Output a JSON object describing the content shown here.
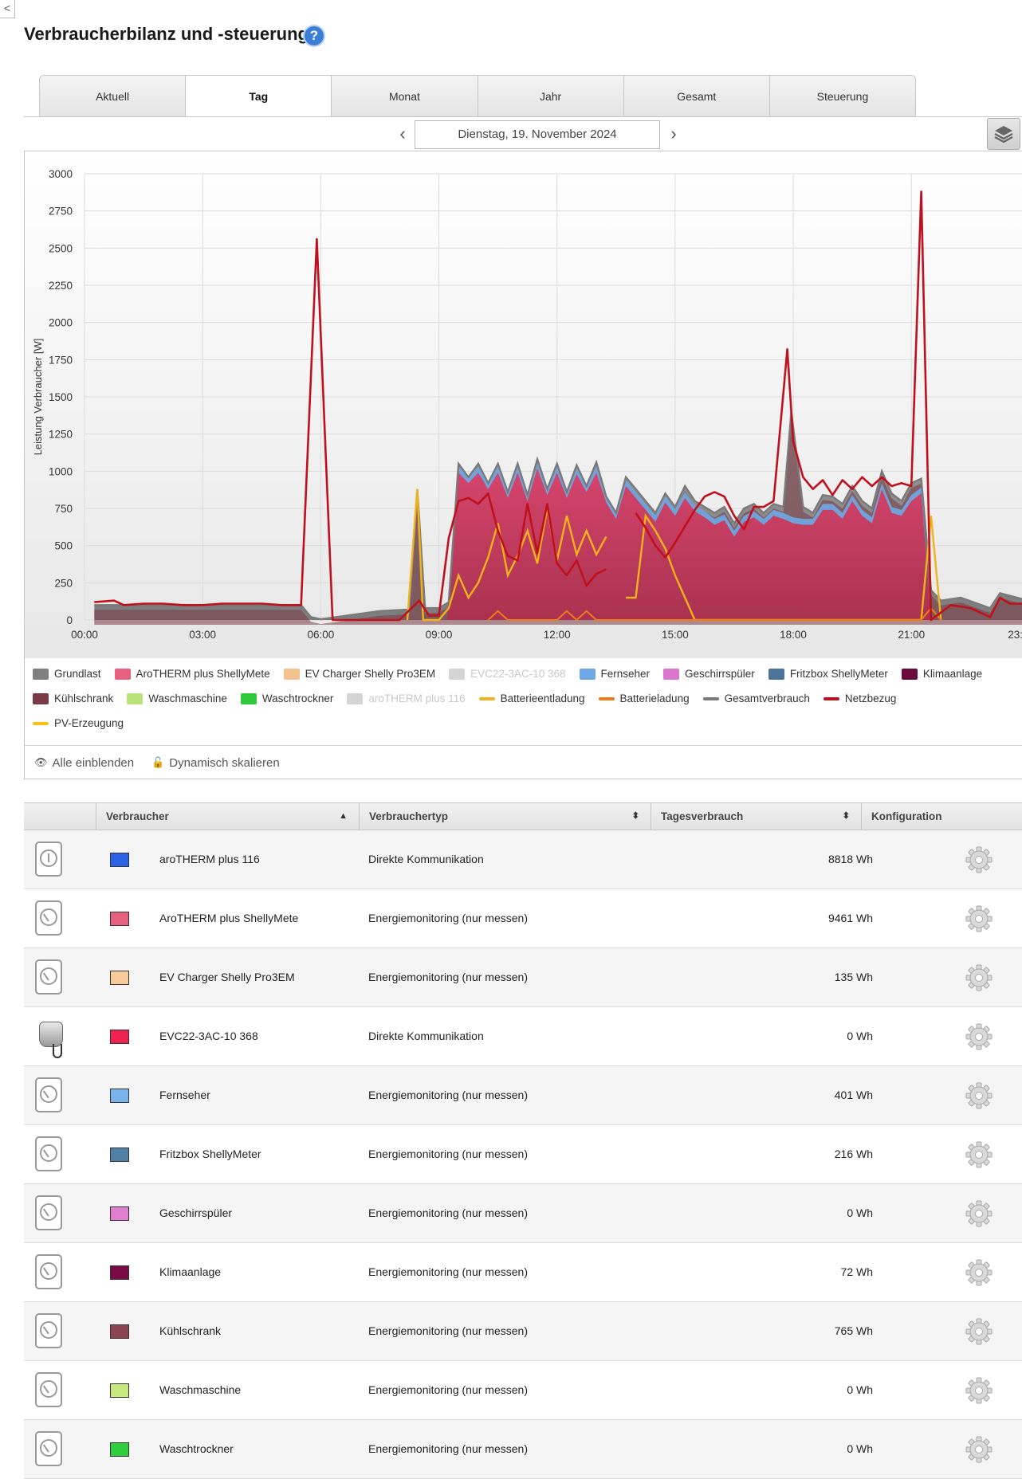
{
  "page": {
    "back_label": "<",
    "title": "Verbraucherbilanz und -steuerung",
    "help_label": "?"
  },
  "tabs": [
    {
      "label": "Aktuell",
      "active": false
    },
    {
      "label": "Tag",
      "active": true
    },
    {
      "label": "Monat",
      "active": false
    },
    {
      "label": "Jahr",
      "active": false
    },
    {
      "label": "Gesamt",
      "active": false
    },
    {
      "label": "Steuerung",
      "active": false
    }
  ],
  "date_nav": {
    "prev": "‹",
    "date": "Dienstag, 19. November 2024",
    "next": "›"
  },
  "chart_data": {
    "type": "area",
    "ylabel": "Leistung Verbraucher [W]",
    "ylim": [
      0,
      3000
    ],
    "yticks": [
      0,
      250,
      500,
      750,
      1000,
      1250,
      1500,
      1750,
      2000,
      2250,
      2500,
      2750,
      3000
    ],
    "xlim": [
      0,
      23.83
    ],
    "xticks": [
      "00:00",
      "03:00",
      "06:00",
      "09:00",
      "12:00",
      "15:00",
      "18:00",
      "21:00",
      "23:"
    ],
    "grid": true,
    "legend_position": "bottom",
    "series": [
      {
        "name": "Gesamtverbrauch",
        "color": "#7a7a7a",
        "kind": "line",
        "points": [
          [
            0.25,
            100
          ],
          [
            5.5,
            100
          ],
          [
            5.75,
            20
          ],
          [
            6,
            5
          ],
          [
            7.5,
            60
          ],
          [
            8.25,
            70
          ],
          [
            8.45,
            880
          ],
          [
            8.65,
            80
          ],
          [
            9,
            80
          ],
          [
            9.25,
            120
          ],
          [
            9.5,
            1050
          ],
          [
            9.75,
            960
          ],
          [
            10,
            1050
          ],
          [
            10.25,
            920
          ],
          [
            10.5,
            1050
          ],
          [
            10.75,
            860
          ],
          [
            11,
            1050
          ],
          [
            11.25,
            840
          ],
          [
            11.5,
            1080
          ],
          [
            11.75,
            880
          ],
          [
            12,
            1050
          ],
          [
            12.25,
            860
          ],
          [
            12.5,
            1040
          ],
          [
            12.75,
            900
          ],
          [
            13,
            1060
          ],
          [
            13.25,
            830
          ],
          [
            13.5,
            720
          ],
          [
            13.75,
            960
          ],
          [
            14,
            880
          ],
          [
            14.25,
            800
          ],
          [
            14.5,
            720
          ],
          [
            14.75,
            850
          ],
          [
            15,
            760
          ],
          [
            15.25,
            900
          ],
          [
            15.5,
            800
          ],
          [
            15.75,
            760
          ],
          [
            16,
            720
          ],
          [
            16.25,
            760
          ],
          [
            16.5,
            650
          ],
          [
            16.75,
            750
          ],
          [
            17,
            780
          ],
          [
            17.25,
            720
          ],
          [
            17.5,
            780
          ],
          [
            17.75,
            760
          ],
          [
            17.95,
            1400
          ],
          [
            18.25,
            760
          ],
          [
            18.5,
            720
          ],
          [
            18.75,
            840
          ],
          [
            19,
            830
          ],
          [
            19.25,
            780
          ],
          [
            19.5,
            900
          ],
          [
            19.75,
            800
          ],
          [
            20,
            750
          ],
          [
            20.25,
            1000
          ],
          [
            20.5,
            850
          ],
          [
            20.75,
            800
          ],
          [
            21,
            920
          ],
          [
            21.25,
            950
          ],
          [
            21.5,
            200
          ],
          [
            21.75,
            130
          ],
          [
            22.25,
            150
          ],
          [
            23,
            80
          ],
          [
            23.25,
            180
          ],
          [
            23.83,
            140
          ]
        ]
      },
      {
        "name": "AroTHERM plus ShellyMete",
        "color": "#d6456d",
        "kind": "area",
        "points": [
          [
            9.2,
            0
          ],
          [
            9.5,
            990
          ],
          [
            9.75,
            920
          ],
          [
            10,
            990
          ],
          [
            10.25,
            880
          ],
          [
            10.5,
            990
          ],
          [
            10.75,
            820
          ],
          [
            11,
            990
          ],
          [
            11.25,
            800
          ],
          [
            11.5,
            1020
          ],
          [
            11.75,
            840
          ],
          [
            12,
            990
          ],
          [
            12.25,
            820
          ],
          [
            12.5,
            980
          ],
          [
            12.75,
            860
          ],
          [
            13,
            990
          ],
          [
            13.25,
            790
          ],
          [
            13.5,
            680
          ],
          [
            13.75,
            900
          ],
          [
            14,
            820
          ],
          [
            14.25,
            740
          ],
          [
            14.5,
            660
          ],
          [
            14.75,
            790
          ],
          [
            15,
            700
          ],
          [
            15.25,
            820
          ],
          [
            15.5,
            730
          ],
          [
            15.75,
            690
          ],
          [
            16,
            640
          ],
          [
            16.25,
            670
          ],
          [
            16.5,
            560
          ],
          [
            16.75,
            660
          ],
          [
            17,
            690
          ],
          [
            17.25,
            640
          ],
          [
            17.5,
            700
          ],
          [
            17.75,
            680
          ],
          [
            18,
            650
          ],
          [
            18.25,
            640
          ],
          [
            18.5,
            640
          ],
          [
            18.75,
            740
          ],
          [
            19,
            740
          ],
          [
            19.25,
            680
          ],
          [
            19.5,
            800
          ],
          [
            19.75,
            700
          ],
          [
            20,
            650
          ],
          [
            20.25,
            880
          ],
          [
            20.5,
            720
          ],
          [
            20.75,
            700
          ],
          [
            21,
            800
          ],
          [
            21.25,
            850
          ],
          [
            21.5,
            0
          ]
        ]
      },
      {
        "name": "Netzbezug",
        "color": "#c0101c",
        "kind": "line",
        "points": [
          [
            0.25,
            120
          ],
          [
            0.75,
            130
          ],
          [
            1,
            100
          ],
          [
            1.5,
            110
          ],
          [
            2,
            110
          ],
          [
            2.5,
            100
          ],
          [
            3,
            100
          ],
          [
            3.5,
            110
          ],
          [
            4,
            110
          ],
          [
            4.5,
            110
          ],
          [
            5,
            100
          ],
          [
            5.5,
            100
          ],
          [
            5.9,
            2560
          ],
          [
            6.3,
            0
          ],
          [
            7,
            0
          ],
          [
            8,
            0
          ],
          [
            8.5,
            130
          ],
          [
            8.75,
            30
          ],
          [
            9,
            30
          ],
          [
            9.25,
            550
          ],
          [
            9.5,
            800
          ],
          [
            9.75,
            820
          ],
          [
            10,
            780
          ],
          [
            10.25,
            850
          ],
          [
            10.5,
            600
          ],
          [
            10.75,
            430
          ],
          [
            11,
            400
          ],
          [
            11.25,
            780
          ],
          [
            11.5,
            450
          ],
          [
            11.75,
            780
          ],
          [
            12,
            380
          ],
          [
            12.25,
            300
          ],
          [
            12.5,
            400
          ],
          [
            12.75,
            230
          ],
          [
            13,
            310
          ],
          [
            13.25,
            340
          ],
          [
            13.5,
            null
          ],
          [
            14,
            720
          ],
          [
            14.25,
            620
          ],
          [
            14.5,
            500
          ],
          [
            14.75,
            420
          ],
          [
            15,
            520
          ],
          [
            15.5,
            740
          ],
          [
            15.75,
            830
          ],
          [
            16,
            860
          ],
          [
            16.25,
            830
          ],
          [
            16.5,
            700
          ],
          [
            16.75,
            610
          ],
          [
            17,
            760
          ],
          [
            17.25,
            760
          ],
          [
            17.5,
            800
          ],
          [
            17.85,
            1820
          ],
          [
            18,
            1200
          ],
          [
            18.25,
            960
          ],
          [
            18.5,
            880
          ],
          [
            18.75,
            940
          ],
          [
            19,
            840
          ],
          [
            19.25,
            940
          ],
          [
            19.5,
            880
          ],
          [
            19.75,
            960
          ],
          [
            20,
            900
          ],
          [
            20.25,
            960
          ],
          [
            20.5,
            900
          ],
          [
            20.75,
            920
          ],
          [
            21,
            900
          ],
          [
            21.25,
            2880
          ],
          [
            21.5,
            0
          ],
          [
            22,
            100
          ],
          [
            22.5,
            80
          ],
          [
            23,
            20
          ],
          [
            23.25,
            150
          ],
          [
            23.5,
            110
          ],
          [
            23.83,
            110
          ]
        ]
      },
      {
        "name": "PV-Erzeugung",
        "color": "#f1b21a",
        "kind": "line",
        "points": [
          [
            8.2,
            0
          ],
          [
            8.45,
            880
          ],
          [
            8.6,
            0
          ],
          [
            9,
            0
          ],
          [
            9.25,
            80
          ],
          [
            9.5,
            300
          ],
          [
            9.75,
            150
          ],
          [
            10,
            250
          ],
          [
            10.25,
            420
          ],
          [
            10.5,
            650
          ],
          [
            10.75,
            300
          ],
          [
            11,
            430
          ],
          [
            11.25,
            600
          ],
          [
            11.5,
            380
          ],
          [
            11.75,
            750
          ],
          [
            12,
            400
          ],
          [
            12.25,
            700
          ],
          [
            12.5,
            440
          ],
          [
            12.75,
            600
          ],
          [
            13,
            440
          ],
          [
            13.25,
            560
          ],
          [
            13.5,
            null
          ],
          [
            13.75,
            150
          ],
          [
            14,
            150
          ],
          [
            14.25,
            700
          ],
          [
            14.5,
            600
          ],
          [
            14.75,
            480
          ],
          [
            15,
            300
          ],
          [
            15.25,
            150
          ],
          [
            15.5,
            0
          ],
          [
            16,
            0
          ],
          [
            21.25,
            0
          ],
          [
            21.5,
            700
          ],
          [
            21.75,
            0
          ]
        ]
      },
      {
        "name": "Batterieladung",
        "color": "#f07b17",
        "kind": "line",
        "points": [
          [
            10.25,
            0
          ],
          [
            10.5,
            60
          ],
          [
            10.75,
            0
          ],
          [
            12,
            0
          ],
          [
            12.25,
            60
          ],
          [
            12.5,
            0
          ],
          [
            12.75,
            60
          ],
          [
            13,
            0
          ],
          [
            21.25,
            0
          ],
          [
            21.5,
            80
          ],
          [
            21.75,
            0
          ]
        ]
      }
    ]
  },
  "legend": [
    {
      "label": "Grundlast",
      "color": "#808080",
      "kind": "box",
      "dim": false
    },
    {
      "label": "AroTHERM plus ShellyMete",
      "color": "#e8607f",
      "kind": "box",
      "dim": false
    },
    {
      "label": "EV Charger Shelly Pro3EM",
      "color": "#f3c28f",
      "kind": "box",
      "dim": false
    },
    {
      "label": "EVC22-3AC-10 368",
      "color": "#d4d4d4",
      "kind": "box",
      "dim": true
    },
    {
      "label": "Fernseher",
      "color": "#6fa8e6",
      "kind": "box",
      "dim": false
    },
    {
      "label": "Geschirrspüler",
      "color": "#d977cf",
      "kind": "box",
      "dim": false
    },
    {
      "label": "Fritzbox ShellyMeter",
      "color": "#4c7399",
      "kind": "box",
      "dim": false
    },
    {
      "label": "Klimaanlage",
      "color": "#6b0a3d",
      "kind": "box",
      "dim": false
    },
    {
      "label": "Kühlschrank",
      "color": "#7a3a43",
      "kind": "box",
      "dim": false
    },
    {
      "label": "Waschmaschine",
      "color": "#b9e27a",
      "kind": "box",
      "dim": false
    },
    {
      "label": "Waschtrockner",
      "color": "#2ec83a",
      "kind": "box",
      "dim": false
    },
    {
      "label": "aroTHERM plus 116",
      "color": "#d4d4d4",
      "kind": "box",
      "dim": true
    },
    {
      "label": "Batterieentladung",
      "color": "#f5b120",
      "kind": "line",
      "dim": false
    },
    {
      "label": "Batterieladung",
      "color": "#f07b17",
      "kind": "line",
      "dim": false
    },
    {
      "label": "Gesamtverbrauch",
      "color": "#7a7a7a",
      "kind": "line",
      "dim": false
    },
    {
      "label": "Netzbezug",
      "color": "#c0101c",
      "kind": "line",
      "dim": false
    },
    {
      "label": "PV-Erzeugung",
      "color": "#f6c21a",
      "kind": "line",
      "dim": false
    }
  ],
  "chart_footer": {
    "show_all": "Alle einblenden",
    "dynamic_scale": "Dynamisch skalieren"
  },
  "table": {
    "headers": {
      "consumer": "Verbraucher",
      "type": "Verbrauchertyp",
      "daily": "Tagesverbrauch",
      "config": "Konfiguration"
    },
    "rows": [
      {
        "icon": "smart-plug-icon",
        "color": "#2a62e8",
        "name": "aroTHERM plus 116",
        "type": "Direkte Kommunikation",
        "usage": "8818 Wh"
      },
      {
        "icon": "meter-icon",
        "color": "#e8607f",
        "name": "AroTHERM plus ShellyMete",
        "type": "Energiemonitoring (nur messen)",
        "usage": "9461 Wh"
      },
      {
        "icon": "meter-icon",
        "color": "#f8c99a",
        "name": "EV Charger Shelly Pro3EM",
        "type": "Energiemonitoring (nur messen)",
        "usage": "135 Wh"
      },
      {
        "icon": "charger-icon",
        "color": "#f0224f",
        "name": "EVC22-3AC-10 368",
        "type": "Direkte Kommunikation",
        "usage": "0 Wh"
      },
      {
        "icon": "meter-icon",
        "color": "#78b3ee",
        "name": "Fernseher",
        "type": "Energiemonitoring (nur messen)",
        "usage": "401 Wh"
      },
      {
        "icon": "meter-icon",
        "color": "#4f80a6",
        "name": "Fritzbox ShellyMeter",
        "type": "Energiemonitoring (nur messen)",
        "usage": "216 Wh"
      },
      {
        "icon": "meter-icon",
        "color": "#e27ed0",
        "name": "Geschirrspüler",
        "type": "Energiemonitoring (nur messen)",
        "usage": "0 Wh"
      },
      {
        "icon": "meter-icon",
        "color": "#7a0a45",
        "name": "Klimaanlage",
        "type": "Energiemonitoring (nur messen)",
        "usage": "72 Wh"
      },
      {
        "icon": "meter-icon",
        "color": "#8c4450",
        "name": "Kühlschrank",
        "type": "Energiemonitoring (nur messen)",
        "usage": "765 Wh"
      },
      {
        "icon": "meter-icon",
        "color": "#c6e87c",
        "name": "Waschmaschine",
        "type": "Energiemonitoring (nur messen)",
        "usage": "0 Wh"
      },
      {
        "icon": "meter-icon",
        "color": "#2fce3c",
        "name": "Waschtrockner",
        "type": "Energiemonitoring (nur messen)",
        "usage": "0 Wh"
      }
    ]
  }
}
